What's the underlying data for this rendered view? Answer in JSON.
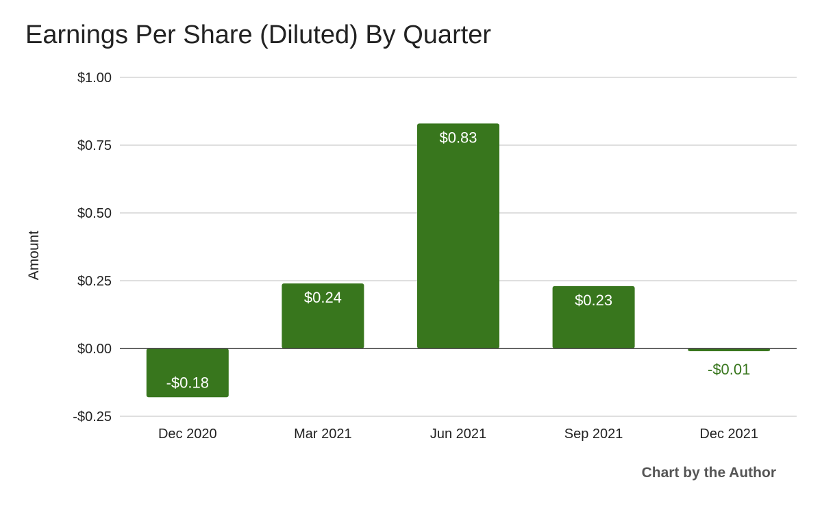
{
  "chart_data": {
    "type": "bar",
    "title": "Earnings Per Share (Diluted) By Quarter",
    "xlabel": "",
    "ylabel": "Amount",
    "categories": [
      "Dec 2020",
      "Mar 2021",
      "Jun 2021",
      "Sep 2021",
      "Dec 2021"
    ],
    "values": [
      -0.18,
      0.24,
      0.83,
      0.23,
      -0.01
    ],
    "data_labels": [
      "-$0.18",
      "$0.24",
      "$0.83",
      "$0.23",
      "-$0.01"
    ],
    "ylim": [
      -0.25,
      1.0
    ],
    "yticks": [
      -0.25,
      0,
      0.25,
      0.5,
      0.75,
      1.0
    ],
    "ytick_labels": [
      "-$0.25",
      "$0.00",
      "$0.25",
      "$0.50",
      "$0.75",
      "$1.00"
    ],
    "grid": true,
    "legend": "none",
    "colors": {
      "bar": "#38761d",
      "label_inside": "#ffffff",
      "label_outside": "#38761d",
      "grid": "#cccccc",
      "zero_line": "#333333",
      "text": "#222222"
    }
  },
  "footer": {
    "credit": "Chart by the Author"
  }
}
